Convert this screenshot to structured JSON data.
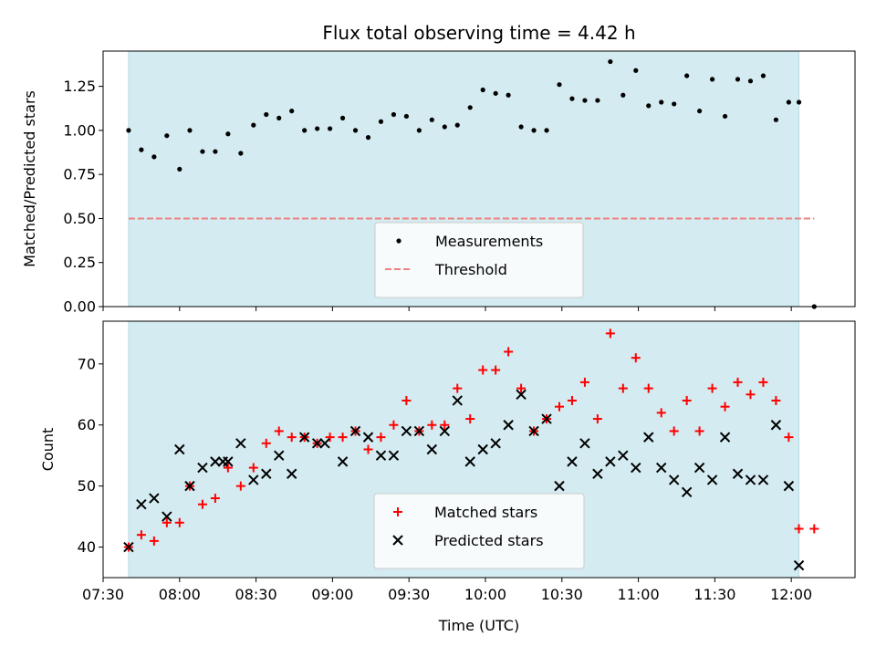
{
  "chart_data": [
    {
      "type": "scatter",
      "title": "Flux total observing time = 4.42 h",
      "ylabel": "Matched/Predicted stars",
      "xlabel": "",
      "xlim": [
        "07:30",
        "12:25"
      ],
      "ylim": [
        0,
        1.45
      ],
      "yticks": [
        "0.00",
        "0.25",
        "0.50",
        "0.75",
        "1.00",
        "1.25"
      ],
      "observing_window": [
        "07:40",
        "12:03"
      ],
      "window_color": "#d4ebf1",
      "legend_position": "lower-center",
      "threshold": {
        "name": "Threshold",
        "value": 0.5,
        "from": "07:40",
        "to": "12:09",
        "color": "#f08080"
      },
      "series": [
        {
          "name": "Measurements",
          "color": "#000000",
          "marker": "dot",
          "x": [
            "07:40",
            "07:45",
            "07:50",
            "07:55",
            "08:00",
            "08:04",
            "08:09",
            "08:14",
            "08:19",
            "08:24",
            "08:29",
            "08:34",
            "08:39",
            "08:44",
            "08:49",
            "08:54",
            "08:59",
            "09:04",
            "09:09",
            "09:14",
            "09:19",
            "09:24",
            "09:29",
            "09:34",
            "09:39",
            "09:44",
            "09:49",
            "09:54",
            "09:59",
            "10:04",
            "10:09",
            "10:14",
            "10:19",
            "10:24",
            "10:29",
            "10:34",
            "10:39",
            "10:44",
            "10:49",
            "10:54",
            "10:59",
            "11:04",
            "11:09",
            "11:14",
            "11:19",
            "11:24",
            "11:29",
            "11:34",
            "11:39",
            "11:44",
            "11:49",
            "11:54",
            "11:59",
            "12:03",
            "12:09"
          ],
          "values": [
            1.0,
            0.89,
            0.85,
            0.97,
            0.78,
            1.0,
            0.88,
            0.88,
            0.98,
            0.87,
            1.03,
            1.09,
            1.07,
            1.11,
            1.0,
            1.01,
            1.01,
            1.07,
            1.0,
            0.96,
            1.05,
            1.09,
            1.08,
            1.0,
            1.06,
            1.02,
            1.03,
            1.13,
            1.23,
            1.21,
            1.2,
            1.02,
            1.0,
            1.0,
            1.26,
            1.18,
            1.17,
            1.17,
            1.39,
            1.2,
            1.34,
            1.14,
            1.16,
            1.15,
            1.31,
            1.11,
            1.29,
            1.08,
            1.29,
            1.28,
            1.31,
            1.06,
            1.16,
            1.16,
            0.0
          ]
        }
      ]
    },
    {
      "type": "scatter",
      "title": "",
      "ylabel": "Count",
      "xlabel": "Time (UTC)",
      "xlim": [
        "07:30",
        "12:25"
      ],
      "ylim": [
        35,
        77
      ],
      "yticks": [
        "40",
        "50",
        "60",
        "70"
      ],
      "xticks": [
        "07:30",
        "08:00",
        "08:30",
        "09:00",
        "09:30",
        "10:00",
        "10:30",
        "11:00",
        "11:30",
        "12:00"
      ],
      "observing_window": [
        "07:40",
        "12:03"
      ],
      "window_color": "#d4ebf1",
      "legend_position": "lower-center",
      "series": [
        {
          "name": "Matched stars",
          "color": "#ff0000",
          "marker": "plus",
          "x": [
            "07:40",
            "07:45",
            "07:50",
            "07:55",
            "08:00",
            "08:04",
            "08:09",
            "08:14",
            "08:19",
            "08:24",
            "08:29",
            "08:34",
            "08:39",
            "08:44",
            "08:49",
            "08:54",
            "08:59",
            "09:04",
            "09:09",
            "09:14",
            "09:19",
            "09:24",
            "09:29",
            "09:34",
            "09:39",
            "09:44",
            "09:49",
            "09:54",
            "09:59",
            "10:04",
            "10:09",
            "10:14",
            "10:19",
            "10:24",
            "10:29",
            "10:34",
            "10:39",
            "10:44",
            "10:49",
            "10:54",
            "10:59",
            "11:04",
            "11:09",
            "11:14",
            "11:19",
            "11:24",
            "11:29",
            "11:34",
            "11:39",
            "11:44",
            "11:49",
            "11:54",
            "11:59",
            "12:03",
            "12:09"
          ],
          "values": [
            40,
            42,
            41,
            44,
            44,
            50,
            47,
            48,
            53,
            50,
            53,
            57,
            59,
            58,
            58,
            57,
            58,
            58,
            59,
            56,
            58,
            60,
            64,
            59,
            60,
            60,
            66,
            61,
            69,
            69,
            72,
            66,
            59,
            61,
            63,
            64,
            67,
            61,
            75,
            66,
            71,
            66,
            62,
            59,
            64,
            59,
            66,
            63,
            67,
            65,
            67,
            64,
            58,
            43,
            43
          ]
        },
        {
          "name": "Predicted stars",
          "color": "#000000",
          "marker": "x",
          "x": [
            "07:40",
            "07:45",
            "07:50",
            "07:55",
            "08:00",
            "08:04",
            "08:09",
            "08:14",
            "08:17",
            "08:19",
            "08:24",
            "08:29",
            "08:34",
            "08:39",
            "08:44",
            "08:49",
            "08:54",
            "08:57",
            "09:04",
            "09:09",
            "09:14",
            "09:19",
            "09:24",
            "09:29",
            "09:34",
            "09:39",
            "09:44",
            "09:49",
            "09:54",
            "09:59",
            "10:04",
            "10:09",
            "10:14",
            "10:19",
            "10:24",
            "10:29",
            "10:34",
            "10:39",
            "10:44",
            "10:49",
            "10:54",
            "10:59",
            "11:04",
            "11:09",
            "11:14",
            "11:19",
            "11:24",
            "11:29",
            "11:34",
            "11:39",
            "11:44",
            "11:49",
            "11:54",
            "11:59",
            "12:03"
          ],
          "values": [
            40,
            47,
            48,
            45,
            56,
            50,
            53,
            54,
            54,
            54,
            57,
            51,
            52,
            55,
            52,
            58,
            57,
            57,
            54,
            59,
            58,
            55,
            55,
            59,
            59,
            56,
            59,
            64,
            54,
            56,
            57,
            60,
            65,
            59,
            61,
            50,
            54,
            57,
            52,
            54,
            55,
            53,
            58,
            53,
            51,
            49,
            53,
            51,
            58,
            52,
            51,
            51,
            60,
            50,
            37
          ]
        }
      ]
    }
  ]
}
